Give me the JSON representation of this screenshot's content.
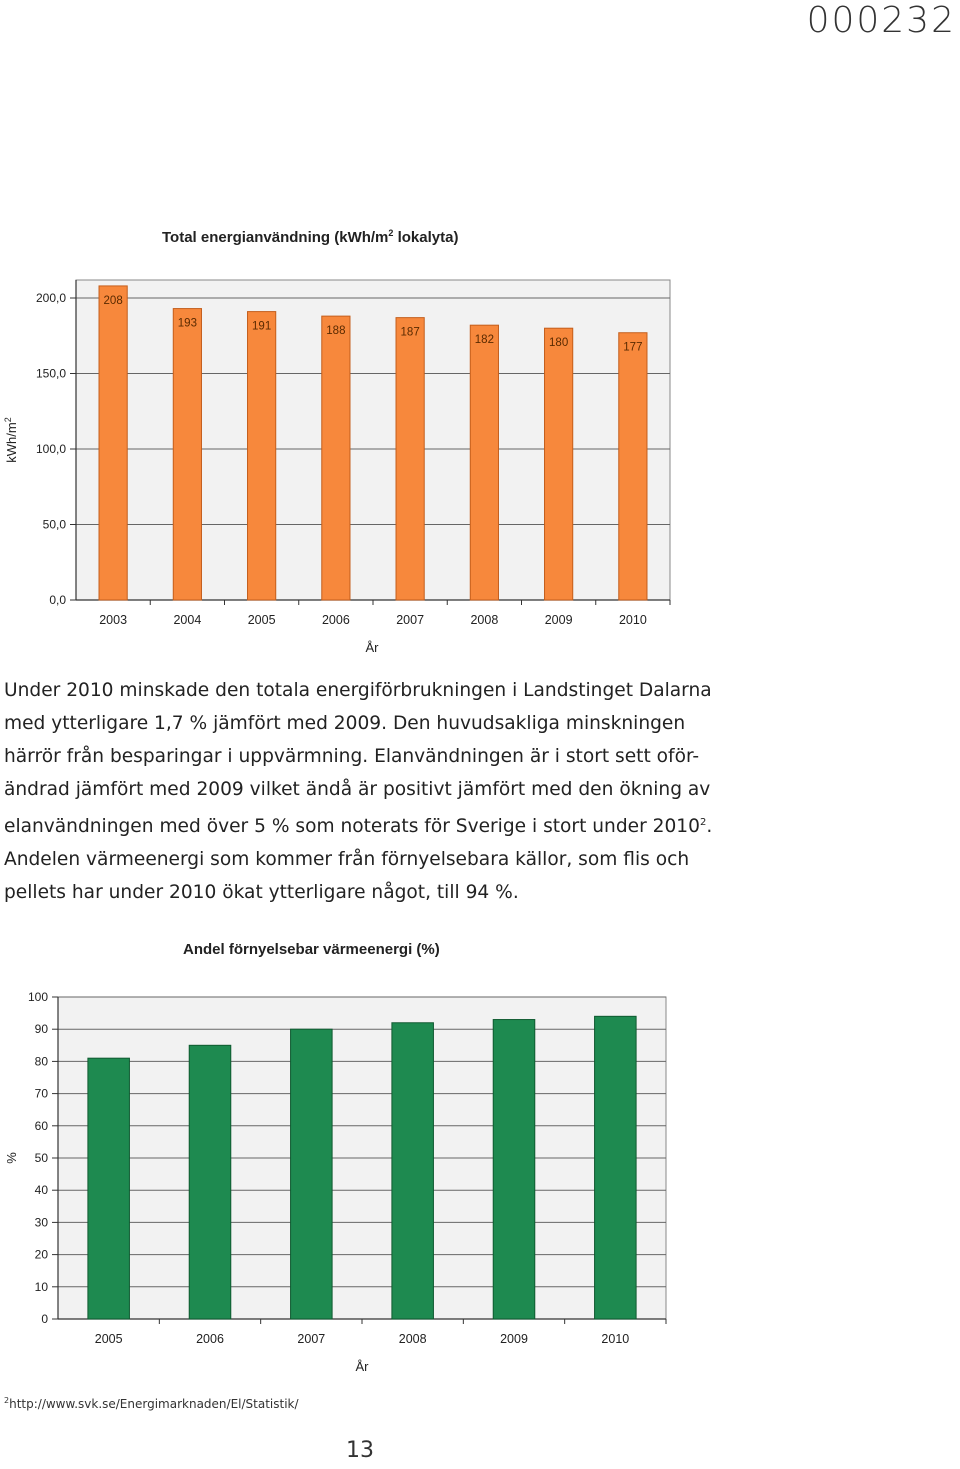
{
  "document": {
    "doc_number": "000232",
    "page_number": "13",
    "footnote_marker": "2",
    "footnote_text": "http://www.svk.se/Energimarknaden/El/Statistik/"
  },
  "body": {
    "lines": [
      "Under 2010 minskade den totala energiförbrukningen i Landstinget Dalarna",
      "med ytterligare 1,7 % jämfört med 2009. Den huvudsakliga minskningen",
      "härrör från besparingar i uppvärmning. Elanvändningen är i stort sett oför-",
      "ändrad jämfört med 2009 vilket ändå är positivt jämfört med den ökning av"
    ],
    "line5_before_sup": "elanvändningen med över 5 % som noterats för Sverige i stort under 2010",
    "line5_sup": "2",
    "line5_after_sup": ".",
    "lines_after": [
      "Andelen värmeenergi som kommer från förnyelsebara källor, som flis och",
      "pellets har under 2010 ökat ytterligare något, till 94 %."
    ]
  },
  "chart_data": [
    {
      "type": "bar",
      "title_main": "Total energianvändning (kWh/m",
      "title_sup": "2",
      "title_end": " lokalyta)",
      "ylabel_main": "kWh/m",
      "ylabel_sup": "2",
      "xlabel": "År",
      "categories": [
        "2003",
        "2004",
        "2005",
        "2006",
        "2007",
        "2008",
        "2009",
        "2010"
      ],
      "values": [
        208,
        193,
        191,
        188,
        187,
        182,
        180,
        177
      ],
      "data_labels": [
        "208",
        "193",
        "191",
        "188",
        "187",
        "182",
        "180",
        "177"
      ],
      "ylim": [
        0,
        200
      ],
      "yticks": [
        0,
        50,
        100,
        150,
        200
      ],
      "ytick_labels": [
        "0,0",
        "50,0",
        "100,0",
        "150,0",
        "200,0"
      ],
      "grid": true,
      "bar_color": "#f7883c",
      "bar_edge_color": "#c45e1c",
      "plot_bg": "#f2f2f2"
    },
    {
      "type": "bar",
      "title": "Andel förnyelsebar värmeenergi (%)",
      "ylabel": "%",
      "xlabel": "År",
      "categories": [
        "2005",
        "2006",
        "2007",
        "2008",
        "2009",
        "2010"
      ],
      "values": [
        81,
        85,
        90,
        92,
        93,
        94
      ],
      "ylim": [
        0,
        100
      ],
      "yticks": [
        0,
        10,
        20,
        30,
        40,
        50,
        60,
        70,
        80,
        90,
        100
      ],
      "ytick_labels": [
        "0",
        "10",
        "20",
        "30",
        "40",
        "50",
        "60",
        "70",
        "80",
        "90",
        "100"
      ],
      "grid": true,
      "bar_color": "#1e8a50",
      "bar_edge_color": "#0f5a30",
      "plot_bg": "#f2f2f2"
    }
  ]
}
